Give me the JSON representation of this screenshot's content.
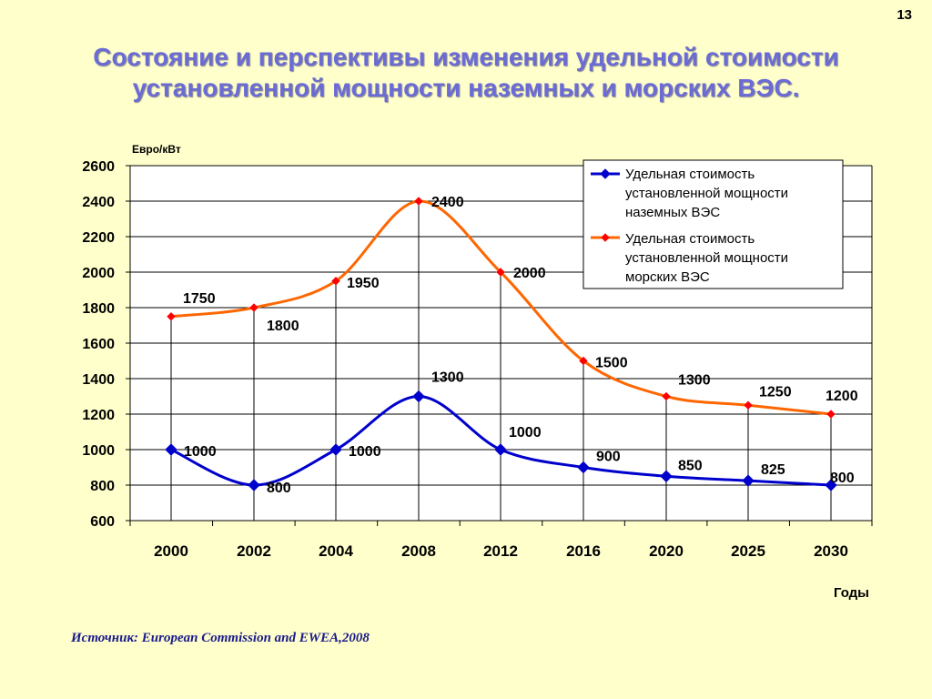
{
  "page_number": "13",
  "title_line1": "Состояние и перспективы изменения удельной стоимости",
  "title_line2": "установленной мощности наземных и морских ВЭС.",
  "source": "Источник: European Commission and EWEA,2008",
  "colors": {
    "background": "#ffffcc",
    "title": "#6b6bd6",
    "source": "#1a1a8c",
    "onshore": "#0000cc",
    "offshore": "#ff6600",
    "offshore_marker": "#ff0000"
  },
  "chart_data": {
    "type": "line",
    "ylabel": "Евро/кВт",
    "xlabel": "Годы",
    "categories": [
      "2000",
      "2002",
      "2004",
      "2008",
      "2012",
      "2016",
      "2020",
      "2025",
      "2030"
    ],
    "ylim": [
      600,
      2600
    ],
    "yticks": [
      600,
      800,
      1000,
      1200,
      1400,
      1600,
      1800,
      2000,
      2200,
      2400,
      2600
    ],
    "grid": true,
    "legend_position": "top-right",
    "series": [
      {
        "name_lines": [
          "Удельная стоимость",
          "установленной мощности",
          "наземных ВЭС"
        ],
        "values": [
          1000,
          800,
          1000,
          1300,
          1000,
          900,
          850,
          825,
          800
        ],
        "labels": [
          "1000",
          "800",
          "1000",
          "1300",
          "1000",
          "900",
          "850",
          "825",
          "800"
        ],
        "color": "#0000cc",
        "marker": "diamond"
      },
      {
        "name_lines": [
          "Удельная стоимость",
          "установленной мощности",
          "морских ВЭС"
        ],
        "values": [
          1750,
          1800,
          1950,
          2400,
          2000,
          1500,
          1300,
          1250,
          1200
        ],
        "labels": [
          "1750",
          "1800",
          "1950",
          "2400",
          "2000",
          "1500",
          "1300",
          "1250",
          "1200"
        ],
        "color": "#ff6600",
        "marker": "diamond-small"
      }
    ]
  }
}
